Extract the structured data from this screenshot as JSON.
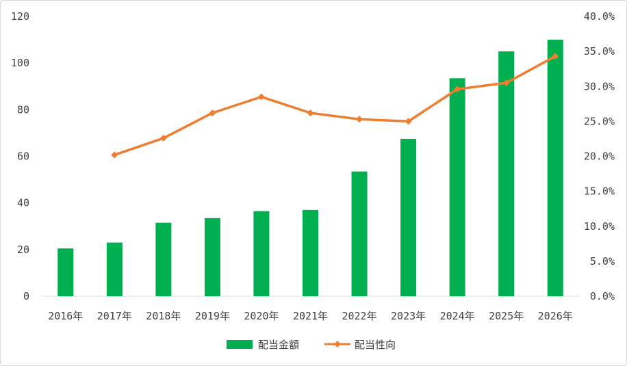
{
  "chart_data": {
    "type": "bar+line",
    "categories": [
      "2016年",
      "2017年",
      "2018年",
      "2019年",
      "2020年",
      "2021年",
      "2022年",
      "2023年",
      "2024年",
      "2025年",
      "2026年"
    ],
    "series": [
      {
        "name": "配当金額",
        "type": "bar",
        "axis": "left",
        "color": "#00b050",
        "values": [
          20.5,
          23,
          31.5,
          33.5,
          36.5,
          37,
          53.5,
          67.5,
          93.5,
          105,
          110
        ]
      },
      {
        "name": "配当性向",
        "type": "line",
        "axis": "right",
        "color": "#ed7d31",
        "marker": "diamond",
        "values": [
          null,
          0.202,
          0.226,
          0.262,
          0.285,
          0.262,
          0.253,
          0.25,
          0.296,
          0.305,
          0.343
        ]
      }
    ],
    "y_left": {
      "min": 0,
      "max": 120,
      "step": 20,
      "ticks": [
        "0",
        "20",
        "40",
        "60",
        "80",
        "100",
        "120"
      ]
    },
    "y_right": {
      "min": 0,
      "max": 0.4,
      "step": 0.05,
      "ticks": [
        "0.0%",
        "5.0%",
        "10.0%",
        "15.0%",
        "20.0%",
        "25.0%",
        "30.0%",
        "35.0%",
        "40.0%"
      ]
    },
    "grid": false,
    "legend": "bottom-center"
  }
}
